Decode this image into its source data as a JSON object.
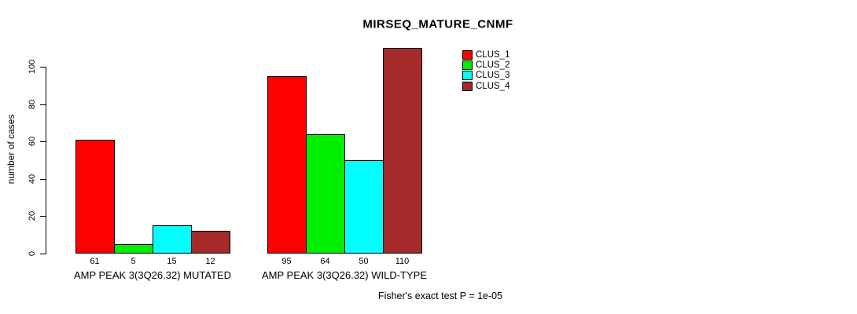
{
  "chart_data": {
    "type": "bar",
    "title": "MIRSEQ_MATURE_CNMF",
    "ylabel": "number of cases",
    "xlabel": "",
    "ylim": [
      0,
      110
    ],
    "yticks": [
      0,
      20,
      40,
      60,
      80,
      100
    ],
    "grid": false,
    "legend_position": "top-right",
    "categories": [
      "AMP PEAK 3(3Q26.32) MUTATED",
      "AMP PEAK 3(3Q26.32) WILD-TYPE"
    ],
    "series": [
      {
        "name": "CLUS_1",
        "color": "#ff0000",
        "values": [
          61,
          95
        ]
      },
      {
        "name": "CLUS_2",
        "color": "#00ee00",
        "values": [
          5,
          64
        ]
      },
      {
        "name": "CLUS_3",
        "color": "#00ffff",
        "values": [
          15,
          50
        ]
      },
      {
        "name": "CLUS_4",
        "color": "#a52a2a",
        "values": [
          12,
          110
        ]
      }
    ],
    "bar_value_labels": [
      [
        61,
        5,
        15,
        12
      ],
      [
        95,
        64,
        50,
        110
      ]
    ],
    "annotation": "Fisher's exact test P = 1e-05"
  }
}
